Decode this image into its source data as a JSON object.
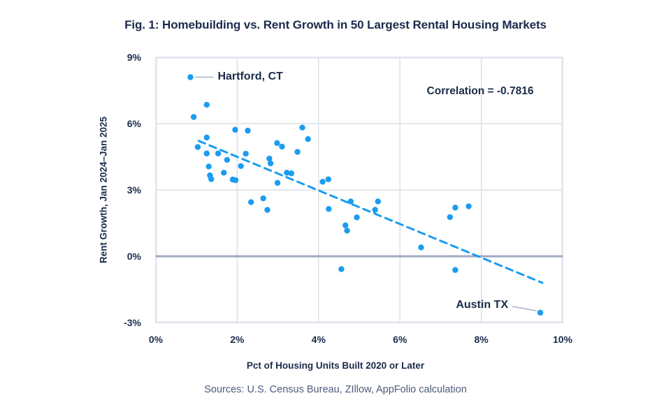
{
  "chart_data": {
    "type": "scatter",
    "title": "Fig. 1: Homebuilding vs. Rent Growth in 50 Largest Rental Housing Markets",
    "xlabel": "Pct of Housing Units Built 2020 or Later",
    "ylabel": "Rent Growth, Jan 2024–Jan 2025",
    "source": "Sources: U.S. Census Bureau, ZIllow, AppFolio calculation",
    "correlation_label": "Correlation = -0.7816",
    "xlim": [
      0,
      10
    ],
    "ylim": [
      -3,
      9
    ],
    "grid": true,
    "zero_line": true,
    "x_ticks": [
      {
        "value": 0,
        "label": "0%"
      },
      {
        "value": 2,
        "label": "2%"
      },
      {
        "value": 4,
        "label": "4%"
      },
      {
        "value": 6,
        "label": "6%"
      },
      {
        "value": 8,
        "label": "8%"
      },
      {
        "value": 10,
        "label": "10%"
      }
    ],
    "y_ticks": [
      {
        "value": 9,
        "label": "9%"
      },
      {
        "value": 6,
        "label": "6%"
      },
      {
        "value": 3,
        "label": "3%"
      },
      {
        "value": 0,
        "label": "0%"
      },
      {
        "value": -3,
        "label": "-3%"
      }
    ],
    "points": [
      [
        0.85,
        8.1
      ],
      [
        0.93,
        6.3
      ],
      [
        1.25,
        6.85
      ],
      [
        1.95,
        5.72
      ],
      [
        2.26,
        5.68
      ],
      [
        1.25,
        5.37
      ],
      [
        1.03,
        4.94
      ],
      [
        1.25,
        4.65
      ],
      [
        1.53,
        4.65
      ],
      [
        1.75,
        4.36
      ],
      [
        1.3,
        4.06
      ],
      [
        1.33,
        3.66
      ],
      [
        1.36,
        3.49
      ],
      [
        1.67,
        3.78
      ],
      [
        1.89,
        3.47
      ],
      [
        1.96,
        3.44
      ],
      [
        2.21,
        4.64
      ],
      [
        2.09,
        4.08
      ],
      [
        2.79,
        4.42
      ],
      [
        2.82,
        4.2
      ],
      [
        2.98,
        5.12
      ],
      [
        3.1,
        4.96
      ],
      [
        2.99,
        3.32
      ],
      [
        2.34,
        2.45
      ],
      [
        2.64,
        2.62
      ],
      [
        2.74,
        2.1
      ],
      [
        3.22,
        3.78
      ],
      [
        3.33,
        3.75
      ],
      [
        3.6,
        5.82
      ],
      [
        3.74,
        5.3
      ],
      [
        3.48,
        4.72
      ],
      [
        4.1,
        3.37
      ],
      [
        4.24,
        3.48
      ],
      [
        4.25,
        2.14
      ],
      [
        4.66,
        1.4
      ],
      [
        4.7,
        1.16
      ],
      [
        4.94,
        1.76
      ],
      [
        4.56,
        -0.58
      ],
      [
        4.79,
        2.48
      ],
      [
        5.46,
        2.48
      ],
      [
        5.39,
        2.1
      ],
      [
        6.52,
        0.4
      ],
      [
        7.23,
        1.77
      ],
      [
        7.36,
        2.2
      ],
      [
        7.69,
        2.26
      ],
      [
        7.36,
        -0.62
      ],
      [
        9.45,
        -2.55
      ]
    ],
    "trend_line": {
      "style": "dashed",
      "from": [
        1.05,
        5.22
      ],
      "to": [
        9.5,
        -1.2
      ]
    },
    "annotations": [
      {
        "label": "Hartford, CT",
        "point": [
          0.85,
          8.1
        ],
        "side": "right"
      },
      {
        "label": "Austin TX",
        "point": [
          9.45,
          -2.55
        ],
        "side": "left"
      }
    ],
    "colors": {
      "dot": "#1A9CF0",
      "trend": "#1A9CF0",
      "grid": "#DCE0E9",
      "zero_line": "#9FAAC1",
      "text": "#1B2B4B",
      "source_text": "#4D5B7D",
      "callout_line": "#A9B3C8",
      "background": "#FFFFFF"
    }
  }
}
